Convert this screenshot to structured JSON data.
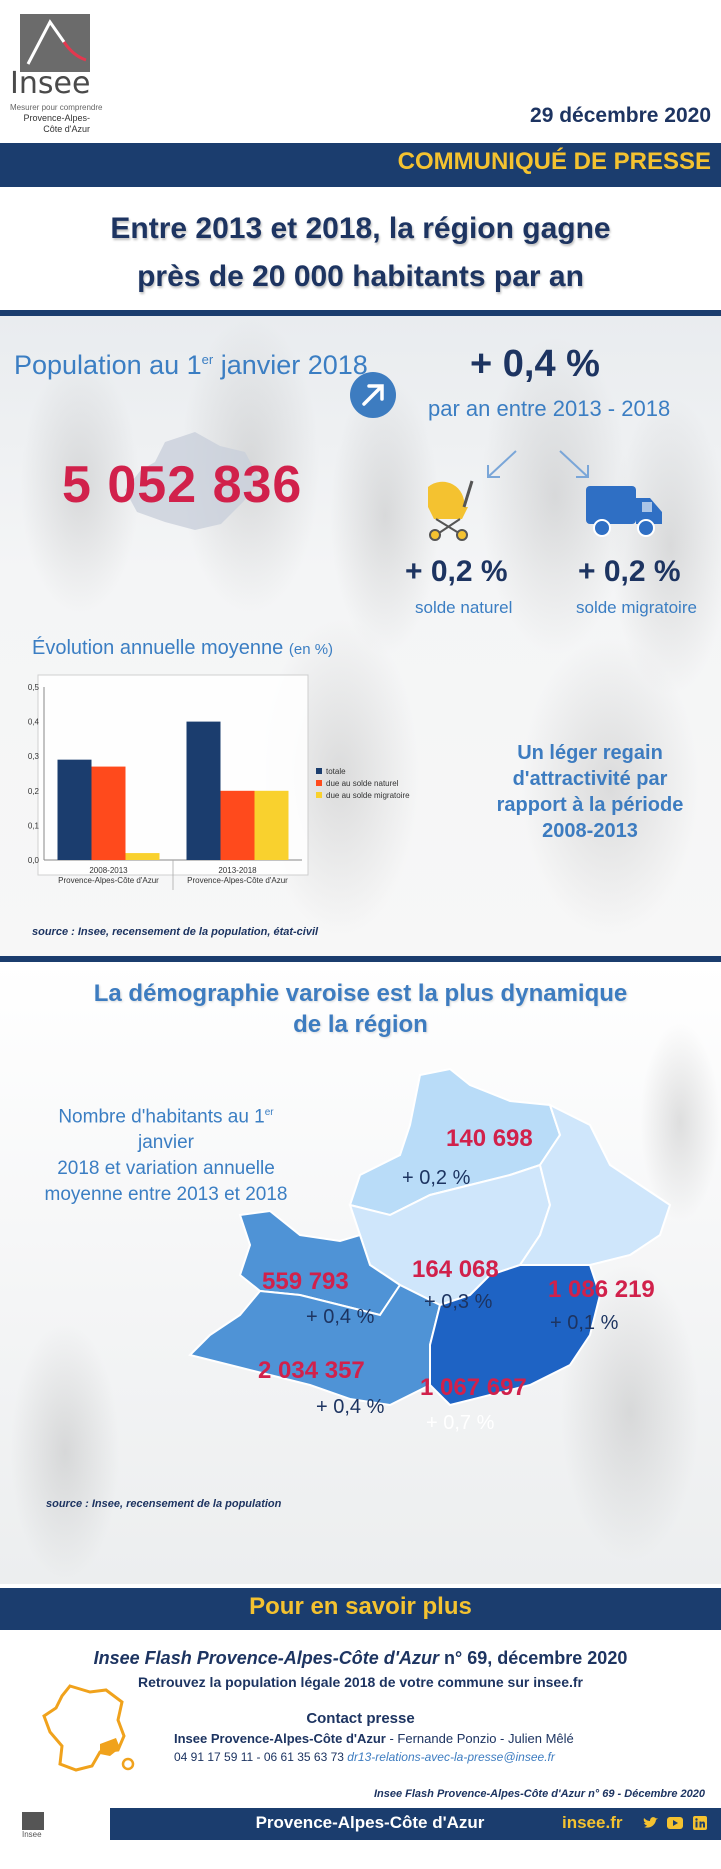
{
  "header": {
    "logo_text": "Insee",
    "logo_tagline": "Mesurer pour comprendre",
    "logo_region_line1": "Provence-Alpes-",
    "logo_region_line2": "Côte d'Azur",
    "date": "29 décembre 2020",
    "banner": "COMMUNIQUÉ DE PRESSE"
  },
  "headline": {
    "line1": "Entre 2013 et 2018, la région gagne",
    "line2": "près de 20 000 habitants par an"
  },
  "population": {
    "label_before": "Population au 1",
    "label_sup": "er",
    "label_after": " janvier 2018",
    "value": "5 052 836",
    "growth": "+ 0,4 %",
    "growth_sub": "par an entre 2013 - 2018",
    "natural_value": "+ 0,2 %",
    "natural_label": "solde naturel",
    "migration_value": "+ 0,2 %",
    "migration_label": "solde migratoire",
    "stroller_icon": "stroller-icon",
    "truck_icon": "truck-icon"
  },
  "chart_title": {
    "main": "Évolution annuelle moyenne",
    "unit": "(en %)"
  },
  "chart_data": {
    "type": "bar",
    "categories": [
      [
        "2008-2013",
        "Provence-Alpes-Côte d'Azur"
      ],
      [
        "2013-2018",
        "Provence-Alpes-Côte d'Azur"
      ]
    ],
    "series": [
      {
        "name": "totale",
        "values": [
          0.29,
          0.4
        ],
        "color": "#1b3d6e"
      },
      {
        "name": "due au solde naturel",
        "values": [
          0.27,
          0.2
        ],
        "color": "#ff4a1c"
      },
      {
        "name": "due au solde migratoire",
        "values": [
          0.02,
          0.2
        ],
        "color": "#f9d12e"
      }
    ],
    "ylim": [
      0,
      0.5
    ],
    "yticks": [
      "0,0",
      "0,1",
      "0,2",
      "0,3",
      "0,4",
      "0,5"
    ],
    "grid": false,
    "legend": "right"
  },
  "source1": "source : Insee, recensement de la population, état-civil",
  "regain": {
    "line1": "Un léger regain",
    "line2": "d'attractivité par",
    "line3": "rapport à la période",
    "line4": "2008-2013"
  },
  "departments": {
    "title_line1": "La démographie varoise est la plus dynamique",
    "title_line2": "de la région",
    "legend_line1_before": "Nombre d'habitants au 1",
    "legend_line1_sup": "er",
    "legend_line1_after": " janvier",
    "legend_line2": "2018 et variation annuelle",
    "legend_line3": "moyenne entre 2013 et 2018",
    "items": [
      {
        "population": "140 698",
        "variation": "+ 0,2 %",
        "color": "#b9dcf8"
      },
      {
        "population": "164 068",
        "variation": "+ 0,3 %",
        "color": "#cfe6fb"
      },
      {
        "population": "559 793",
        "variation": "+ 0,4 %",
        "color": "#4f93d6"
      },
      {
        "population": "1 086 219",
        "variation": "+ 0,1 %",
        "color": "#cfe6fb"
      },
      {
        "population": "2 034 357",
        "variation": "+ 0,4 %",
        "color": "#4f93d6"
      },
      {
        "population": "1 067 697",
        "variation": "+ 0,7 %",
        "color": "#1e63c4"
      }
    ],
    "source": "source : Insee, recensement de la population"
  },
  "footer": {
    "more": "Pour en savoir plus",
    "flash_italic": "Insee Flash Provence-Alpes-Côte d'Azur",
    "flash_rest": " n° 69, décembre  2020",
    "retrouvez": "Retrouvez la population légale 2018 de votre commune sur insee.fr",
    "contact_title": "Contact presse",
    "contact_org": "Insee  Provence-Alpes-Côte d'Azur",
    "contact_names": " - Fernande Ponzio - Julien Mêlé",
    "phones": "04 91 17 59 11 - 06 61 35 63 73 ",
    "email": "dr13-relations-avec-la-presse@insee.fr",
    "flash_ref": "Insee Flash Provence-Alpes-Côte d'Azur n° 69 - Décembre 2020",
    "region": "Provence-Alpes-Côte d'Azur",
    "site": "insee.fr",
    "bottom_logo_text": "Insee",
    "social_icons": [
      "twitter-icon",
      "youtube-icon",
      "linkedin-icon"
    ]
  }
}
